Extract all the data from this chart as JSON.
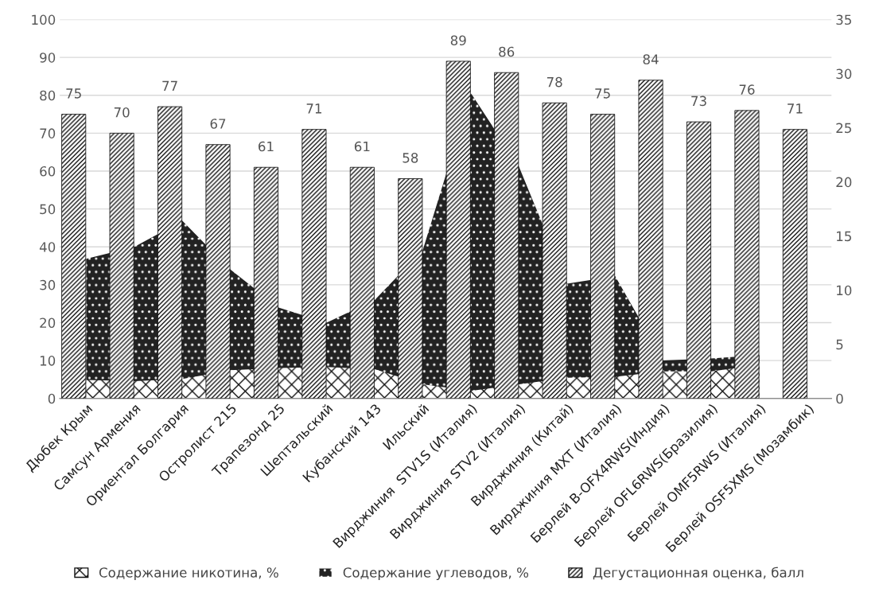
{
  "chart_data": {
    "type": "bar",
    "categories": [
      "Дюбек Крым",
      "Самсун Армения",
      "Ориентал Болгария",
      "Остролист 215",
      "Трапезонд 25",
      "Шептальский",
      "Кубанский 143",
      "Ильский",
      "Вирджиния  STV1S (Италия)",
      "Вирджиния STV2 (Италия)",
      "Вирджиния (Китай)",
      "Вирджиния MXT (Италия)",
      "Берлей B-OFX4RWS(Индия)",
      "Берлей OFL6RWS(Бразилия)",
      "Берлей OMF5RWS (Италия)",
      "Берлей OSF5XMS (Мозамбик)"
    ],
    "series": [
      {
        "name": "Содержание никотина, %",
        "type": "area",
        "axis": "y2",
        "color": "#111111",
        "values": [
          1.7,
          1.6,
          1.8,
          2.6,
          2.8,
          2.9,
          2.7,
          1.3,
          0.7,
          1.3,
          1.9,
          2.0,
          2.5,
          2.5,
          3.1,
          null
        ]
      },
      {
        "name": "Содержание углеводов, %",
        "type": "area",
        "axis": "y2",
        "color": "#222222",
        "values": [
          12.9,
          14.0,
          16.4,
          11.9,
          8.4,
          7.0,
          9.1,
          13.7,
          28.2,
          21.4,
          10.6,
          11.3,
          3.5,
          3.7,
          4.0,
          null
        ]
      },
      {
        "name": "Дегустационная оценка, балл",
        "color": "#111111",
        "values": [
          75,
          70,
          77,
          67,
          61,
          71,
          61,
          58,
          89,
          86,
          78,
          75,
          84,
          73,
          76,
          71
        ],
        "value_labels": [
          "75",
          "70",
          "77",
          "67",
          "61",
          "71",
          "61",
          "58",
          "89",
          "86",
          "78",
          "75",
          "84",
          "73",
          "76",
          "71"
        ]
      }
    ],
    "ylim": [
      0,
      100
    ],
    "yticks": [
      0,
      10,
      20,
      30,
      40,
      50,
      60,
      70,
      80,
      90,
      100
    ],
    "y2lim": [
      0,
      35
    ],
    "y2ticks": [
      0,
      5,
      10,
      15,
      20,
      25,
      30,
      35
    ],
    "grid": "y",
    "legend": "bottom"
  }
}
